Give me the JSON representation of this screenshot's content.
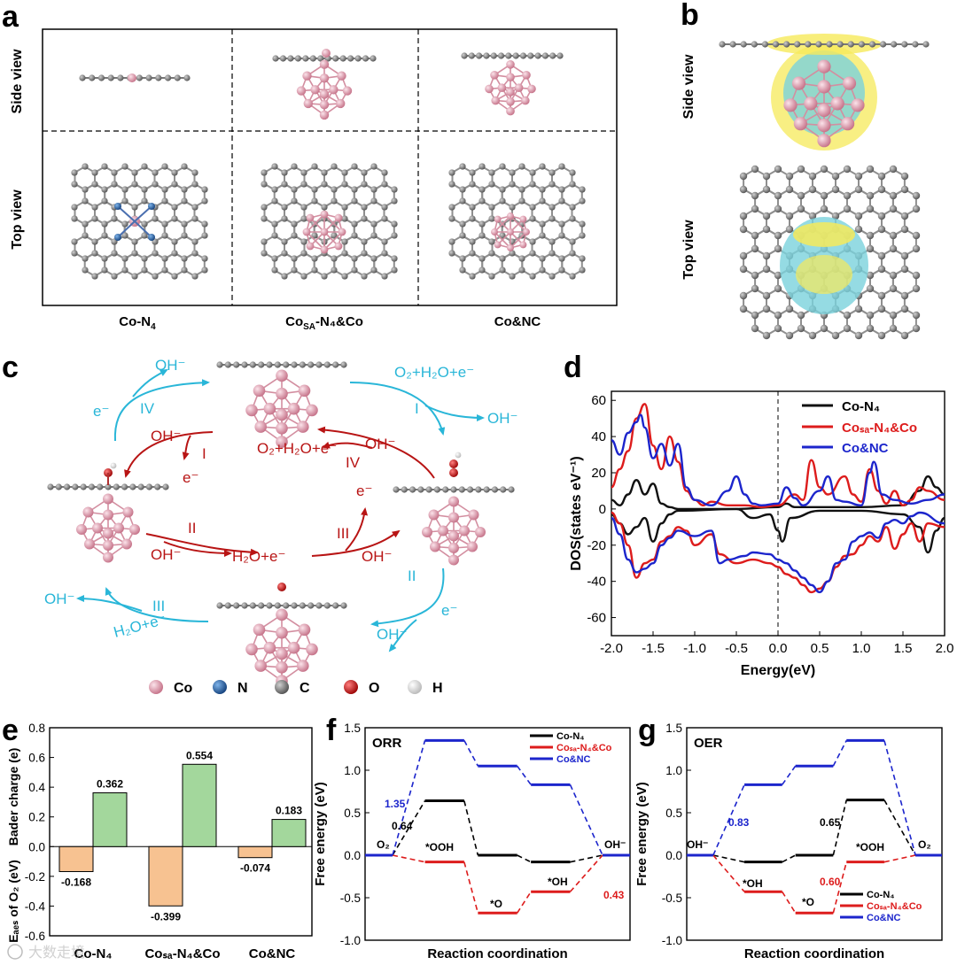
{
  "panels": {
    "a": {
      "label": "a",
      "side_view": "Side  view",
      "top_view": "Top  view",
      "columns": [
        {
          "main": "Co-N",
          "sub": "4",
          "tail": ""
        },
        {
          "main": "Co",
          "sub": "SA",
          "tail": "-N₄&Co"
        },
        {
          "main": "Co&NC",
          "sub": "",
          "tail": ""
        }
      ]
    },
    "b": {
      "label": "b",
      "side_view": "Side  view",
      "top_view": "Top  view"
    },
    "c": {
      "label": "c",
      "orr_color": "#29b6d8",
      "oer_color": "#b81414",
      "orr": {
        "step1_in": "O₂+H₂O+e⁻",
        "step1_out": "OH⁻",
        "step1_num": "I",
        "step2_in": "e⁻",
        "step2_out": "OH⁻",
        "step2_num": "II",
        "step3_in": "H₂O+e⁻",
        "step3_out": "OH⁻",
        "step3_num": "III",
        "step4_in": "e⁻",
        "step4_out": "OH⁻",
        "step4_num": "IV"
      },
      "oer": {
        "step1_in": "OH⁻",
        "step1_out": "e⁻",
        "step1_num": "I",
        "step2_in": "OH⁻",
        "step2_out": "H₂O+e⁻",
        "step2_num": "II",
        "step3_in": "OH⁻",
        "step3_out": "e⁻",
        "step3_num": "III",
        "step4_in": "OH⁻",
        "step4_out": "O₂+H₂O+e⁻",
        "step4_num": "IV"
      },
      "legend": [
        {
          "label": "Co",
          "color": "#d98ea0"
        },
        {
          "label": "N",
          "color": "#1a5fa8"
        },
        {
          "label": "C",
          "color": "#808080"
        },
        {
          "label": "O",
          "color": "#cc1111"
        },
        {
          "label": "H",
          "color": "#eeeeee"
        }
      ]
    },
    "d": {
      "label": "d"
    },
    "e": {
      "label": "e"
    },
    "f": {
      "label": "f"
    },
    "g": {
      "label": "g"
    }
  },
  "chart_data": [
    {
      "id": "d",
      "type": "line",
      "xlabel": "Energy(eV)",
      "ylabel": "DOS(states eV⁻¹)",
      "xlim": [
        -2.0,
        2.0
      ],
      "ylim": [
        -70,
        65
      ],
      "xticks": [
        "-2.0",
        "-1.5",
        "-1.0",
        "-0.5",
        "0.0",
        "0.5",
        "1.0",
        "1.5",
        "2.0"
      ],
      "xtick_values": [
        -2.0,
        -1.5,
        -1.0,
        -0.5,
        0.0,
        0.5,
        1.0,
        1.5,
        2.0
      ],
      "yticks": [
        -60,
        -40,
        -20,
        0,
        20,
        40,
        60
      ],
      "fermi_level": 0.0,
      "series": [
        {
          "name": "Co-N₄",
          "color": "#111111",
          "up": [
            [
              -2.0,
              5
            ],
            [
              -1.9,
              2
            ],
            [
              -1.8,
              8
            ],
            [
              -1.7,
              16
            ],
            [
              -1.6,
              8
            ],
            [
              -1.5,
              14
            ],
            [
              -1.4,
              3
            ],
            [
              -1.3,
              1
            ],
            [
              -1.2,
              0
            ],
            [
              -1.0,
              0
            ],
            [
              -0.5,
              0
            ],
            [
              0.0,
              1
            ],
            [
              0.1,
              3
            ],
            [
              0.2,
              1
            ],
            [
              0.5,
              1
            ],
            [
              1.0,
              1
            ],
            [
              1.5,
              2
            ],
            [
              1.7,
              10
            ],
            [
              1.8,
              18
            ],
            [
              1.9,
              12
            ],
            [
              2.0,
              8
            ]
          ],
          "down": [
            [
              -2.0,
              -3
            ],
            [
              -1.9,
              -8
            ],
            [
              -1.8,
              -14
            ],
            [
              -1.7,
              -10
            ],
            [
              -1.6,
              -5
            ],
            [
              -1.5,
              -18
            ],
            [
              -1.4,
              -8
            ],
            [
              -1.3,
              -3
            ],
            [
              -1.2,
              -1
            ],
            [
              -0.5,
              0
            ],
            [
              -0.3,
              -5
            ],
            [
              -0.1,
              -3
            ],
            [
              0.0,
              -12
            ],
            [
              0.05,
              -18
            ],
            [
              0.15,
              -5
            ],
            [
              0.5,
              -1
            ],
            [
              1.0,
              -1
            ],
            [
              1.5,
              -3
            ],
            [
              1.7,
              -10
            ],
            [
              1.8,
              -24
            ],
            [
              1.9,
              -12
            ],
            [
              2.0,
              -5
            ]
          ]
        },
        {
          "name": "Coₛₐ-N₄&Co",
          "color": "#dd1c1c",
          "up": [
            [
              -2.0,
              12
            ],
            [
              -1.9,
              22
            ],
            [
              -1.8,
              32
            ],
            [
              -1.7,
              50
            ],
            [
              -1.6,
              58
            ],
            [
              -1.5,
              35
            ],
            [
              -1.4,
              22
            ],
            [
              -1.3,
              40
            ],
            [
              -1.2,
              26
            ],
            [
              -1.1,
              10
            ],
            [
              -1.0,
              5
            ],
            [
              -0.9,
              2
            ],
            [
              -0.8,
              4
            ],
            [
              -0.6,
              2
            ],
            [
              -0.4,
              2
            ],
            [
              -0.2,
              1
            ],
            [
              0.0,
              2
            ],
            [
              0.2,
              8
            ],
            [
              0.3,
              5
            ],
            [
              0.4,
              27
            ],
            [
              0.5,
              12
            ],
            [
              0.6,
              8
            ],
            [
              0.8,
              18
            ],
            [
              0.9,
              8
            ],
            [
              1.0,
              4
            ],
            [
              1.1,
              22
            ],
            [
              1.2,
              10
            ],
            [
              1.3,
              3
            ],
            [
              1.4,
              10
            ],
            [
              1.5,
              2
            ],
            [
              1.6,
              5
            ],
            [
              1.7,
              12
            ],
            [
              1.8,
              10
            ],
            [
              2.0,
              5
            ]
          ],
          "down": [
            [
              -2.0,
              -2
            ],
            [
              -1.9,
              -8
            ],
            [
              -1.8,
              -20
            ],
            [
              -1.7,
              -38
            ],
            [
              -1.6,
              -30
            ],
            [
              -1.5,
              -28
            ],
            [
              -1.4,
              -18
            ],
            [
              -1.3,
              -15
            ],
            [
              -1.2,
              -10
            ],
            [
              -1.1,
              -12
            ],
            [
              -1.0,
              -20
            ],
            [
              -0.8,
              -14
            ],
            [
              -0.7,
              -25
            ],
            [
              -0.5,
              -30
            ],
            [
              -0.3,
              -28
            ],
            [
              -0.1,
              -30
            ],
            [
              0.0,
              -32
            ],
            [
              0.1,
              -36
            ],
            [
              0.2,
              -38
            ],
            [
              0.3,
              -42
            ],
            [
              0.4,
              -46
            ],
            [
              0.5,
              -44
            ],
            [
              0.6,
              -40
            ],
            [
              0.7,
              -32
            ],
            [
              0.8,
              -26
            ],
            [
              0.9,
              -25
            ],
            [
              1.0,
              -20
            ],
            [
              1.1,
              -15
            ],
            [
              1.2,
              -18
            ],
            [
              1.3,
              -10
            ],
            [
              1.4,
              -22
            ],
            [
              1.5,
              -14
            ],
            [
              1.6,
              -8
            ],
            [
              1.7,
              -18
            ],
            [
              1.8,
              -8
            ],
            [
              2.0,
              -10
            ]
          ]
        },
        {
          "name": "Co&NC",
          "color": "#1c25cc",
          "up": [
            [
              -2.0,
              38
            ],
            [
              -1.9,
              30
            ],
            [
              -1.8,
              42
            ],
            [
              -1.7,
              48
            ],
            [
              -1.65,
              52
            ],
            [
              -1.6,
              45
            ],
            [
              -1.5,
              28
            ],
            [
              -1.4,
              36
            ],
            [
              -1.3,
              24
            ],
            [
              -1.2,
              36
            ],
            [
              -1.1,
              12
            ],
            [
              -1.0,
              5
            ],
            [
              -0.8,
              2
            ],
            [
              -0.6,
              10
            ],
            [
              -0.5,
              18
            ],
            [
              -0.4,
              8
            ],
            [
              -0.3,
              3
            ],
            [
              -0.2,
              2
            ],
            [
              0.0,
              3
            ],
            [
              0.1,
              12
            ],
            [
              0.2,
              6
            ],
            [
              0.3,
              2
            ],
            [
              0.5,
              10
            ],
            [
              0.6,
              18
            ],
            [
              0.7,
              5
            ],
            [
              0.8,
              4
            ],
            [
              1.0,
              2
            ],
            [
              1.1,
              20
            ],
            [
              1.15,
              26
            ],
            [
              1.25,
              8
            ],
            [
              1.4,
              5
            ],
            [
              1.6,
              3
            ],
            [
              1.8,
              5
            ],
            [
              2.0,
              8
            ]
          ],
          "down": [
            [
              -2.0,
              -5
            ],
            [
              -1.9,
              -14
            ],
            [
              -1.8,
              -28
            ],
            [
              -1.7,
              -35
            ],
            [
              -1.6,
              -33
            ],
            [
              -1.5,
              -30
            ],
            [
              -1.4,
              -20
            ],
            [
              -1.3,
              -16
            ],
            [
              -1.2,
              -12
            ],
            [
              -1.0,
              -15
            ],
            [
              -0.8,
              -12
            ],
            [
              -0.7,
              -30
            ],
            [
              -0.6,
              -28
            ],
            [
              -0.4,
              -26
            ],
            [
              -0.3,
              -24
            ],
            [
              -0.1,
              -25
            ],
            [
              0.0,
              -28
            ],
            [
              0.1,
              -30
            ],
            [
              0.2,
              -34
            ],
            [
              0.3,
              -38
            ],
            [
              0.4,
              -42
            ],
            [
              0.5,
              -46
            ],
            [
              0.6,
              -40
            ],
            [
              0.7,
              -30
            ],
            [
              0.8,
              -28
            ],
            [
              0.9,
              -18
            ],
            [
              1.0,
              -15
            ],
            [
              1.1,
              -13
            ],
            [
              1.2,
              -16
            ],
            [
              1.3,
              -8
            ],
            [
              1.4,
              -6
            ],
            [
              1.5,
              -8
            ],
            [
              1.6,
              -4
            ],
            [
              1.7,
              -2
            ],
            [
              2.0,
              -8
            ]
          ]
        }
      ],
      "legend": [
        "Co-N₄",
        "Coₛₐ-N₄&Co",
        "Co&NC"
      ]
    },
    {
      "id": "e",
      "type": "bar",
      "ylabel_main": "Bader charge (e)",
      "ylabel_alt": "Eₐₑₛ of O₂ (eV)",
      "ylim": [
        -0.6,
        0.8
      ],
      "yticks": [
        -0.6,
        -0.4,
        -0.2,
        0.0,
        0.2,
        0.4,
        0.6,
        0.8
      ],
      "ytick_labels": [
        "-0.6",
        "-0.4",
        "-0.2",
        "0.0",
        "0.2",
        "0.4",
        "0.6",
        "0.8"
      ],
      "categories": [
        "Co-N₄",
        "Coₛₐ-N₄&Co",
        "Co&NC"
      ],
      "series": [
        {
          "name": "E_ads of O₂",
          "color": "#f7c291",
          "values": [
            -0.168,
            -0.399,
            -0.074
          ],
          "labels": [
            "-0.168",
            "-0.399",
            "-0.074"
          ]
        },
        {
          "name": "Bader charge",
          "color": "#a3d79c",
          "values": [
            0.362,
            0.554,
            0.183
          ],
          "labels": [
            "0.362",
            "0.554",
            "0.183"
          ]
        }
      ]
    },
    {
      "id": "f",
      "type": "line",
      "title": "ORR",
      "xlabel": "Reaction coordination",
      "ylabel": "Free energy (eV)",
      "ylim": [
        -1.0,
        1.5
      ],
      "yticks": [
        -1.0,
        -0.5,
        0.0,
        0.5,
        1.0,
        1.5
      ],
      "ytick_labels": [
        "-1.0",
        "-0.5",
        "0.0",
        "0.5",
        "1.0",
        "1.5"
      ],
      "steps": [
        "O₂",
        "*OOH",
        "*O",
        "*OH",
        "OH⁻"
      ],
      "series": [
        {
          "name": "Co-N₄",
          "color": "#000000",
          "values": [
            0,
            0.64,
            0.0,
            -0.08,
            0
          ]
        },
        {
          "name": "Coₛₐ-N₄&Co",
          "color": "#dd1c1c",
          "values": [
            0,
            -0.08,
            -0.68,
            -0.43,
            0
          ]
        },
        {
          "name": "Co&NC",
          "color": "#1c25cc",
          "values": [
            0,
            1.35,
            1.05,
            0.83,
            0
          ]
        }
      ],
      "annotations": [
        {
          "text": "1.35",
          "color": "#1c25cc"
        },
        {
          "text": "0.64",
          "color": "#000000"
        },
        {
          "text": "0.43",
          "color": "#dd1c1c"
        },
        {
          "text": "O₂",
          "color": "#000000"
        },
        {
          "text": "*OOH",
          "color": "#000000"
        },
        {
          "text": "*O",
          "color": "#000000"
        },
        {
          "text": "*OH",
          "color": "#000000"
        },
        {
          "text": "OH⁻",
          "color": "#000000"
        }
      ]
    },
    {
      "id": "g",
      "type": "line",
      "title": "OER",
      "xlabel": "Reaction coordination",
      "ylabel": "Free energy (eV)",
      "ylim": [
        -1.0,
        1.5
      ],
      "yticks": [
        -1.0,
        -0.5,
        0.0,
        0.5,
        1.0,
        1.5
      ],
      "ytick_labels": [
        "-1.0",
        "-0.5",
        "0.0",
        "0.5",
        "1.0",
        "1.5"
      ],
      "steps": [
        "OH⁻",
        "*OH",
        "*O",
        "*OOH",
        "O₂"
      ],
      "series": [
        {
          "name": "Co-N₄",
          "color": "#000000",
          "values": [
            0,
            -0.08,
            0.0,
            0.65,
            0
          ]
        },
        {
          "name": "Coₛₐ-N₄&Co",
          "color": "#dd1c1c",
          "values": [
            0,
            -0.43,
            -0.68,
            -0.08,
            0
          ]
        },
        {
          "name": "Co&NC",
          "color": "#1c25cc",
          "values": [
            0,
            0.83,
            1.05,
            1.35,
            0
          ]
        }
      ],
      "annotations": [
        {
          "text": "0.83",
          "color": "#1c25cc"
        },
        {
          "text": "0.65",
          "color": "#000000"
        },
        {
          "text": "0.60",
          "color": "#dd1c1c"
        },
        {
          "text": "OH⁻",
          "color": "#000000"
        },
        {
          "text": "*OH",
          "color": "#000000"
        },
        {
          "text": "*O",
          "color": "#000000"
        },
        {
          "text": "*OOH",
          "color": "#000000"
        },
        {
          "text": "O₂",
          "color": "#000000"
        }
      ]
    }
  ],
  "watermark": "大数走境"
}
